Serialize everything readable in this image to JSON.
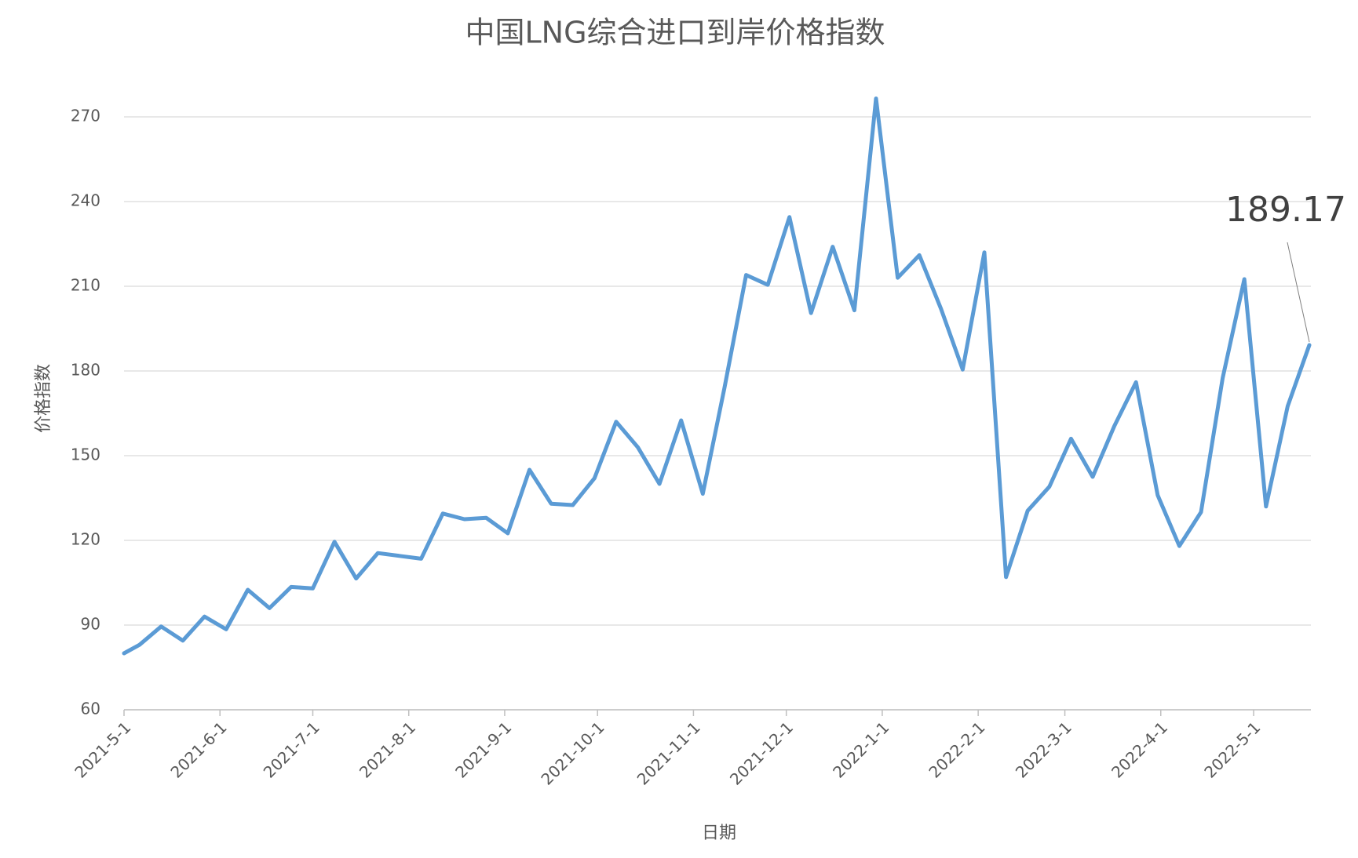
{
  "chart_data": {
    "type": "line",
    "title": "中国LNG综合进口到岸价格指数",
    "x_label": "日期",
    "y_label": "价格指数",
    "x": [
      "2021-5-1",
      "2021-5-6",
      "2021-5-13",
      "2021-5-20",
      "2021-5-27",
      "2021-6-3",
      "2021-6-10",
      "2021-6-17",
      "2021-6-24",
      "2021-7-1",
      "2021-7-8",
      "2021-7-15",
      "2021-7-22",
      "2021-7-29",
      "2021-8-5",
      "2021-8-12",
      "2021-8-19",
      "2021-8-26",
      "2021-9-2",
      "2021-9-9",
      "2021-9-16",
      "2021-9-23",
      "2021-9-30",
      "2021-10-7",
      "2021-10-14",
      "2021-10-21",
      "2021-10-28",
      "2021-11-4",
      "2021-11-11",
      "2021-11-18",
      "2021-11-25",
      "2021-12-2",
      "2021-12-9",
      "2021-12-16",
      "2021-12-23",
      "2021-12-30",
      "2022-1-6",
      "2022-1-13",
      "2022-1-20",
      "2022-1-27",
      "2022-2-3",
      "2022-2-10",
      "2022-2-17",
      "2022-2-24",
      "2022-3-3",
      "2022-3-10",
      "2022-3-17",
      "2022-3-24",
      "2022-3-31",
      "2022-4-7",
      "2022-4-14",
      "2022-4-21",
      "2022-4-28",
      "2022-5-5",
      "2022-5-12",
      "2022-5-19"
    ],
    "series": [
      {
        "name": "价格指数",
        "color": "#5b9bd5",
        "values": [
          80,
          83,
          89.5,
          84.5,
          93,
          88.5,
          102.5,
          96,
          103.5,
          103,
          119.5,
          106.5,
          115.5,
          114.5,
          113.5,
          129.5,
          127.5,
          128,
          122.5,
          145,
          133,
          132.5,
          142,
          162,
          153,
          140,
          162.5,
          136.5,
          174,
          214,
          210.5,
          234.5,
          200.5,
          224,
          201.5,
          276.5,
          213,
          221,
          202,
          180.5,
          222,
          107,
          130.5,
          139,
          156,
          142.5,
          160.5,
          176,
          136,
          118,
          130,
          177.5,
          212.5,
          132,
          167.5,
          189.17
        ]
      }
    ],
    "xlim": [
      "2021-5-1",
      "2022-5-19"
    ],
    "xticks": [
      "2021-5-1",
      "2021-6-1",
      "2021-7-1",
      "2021-8-1",
      "2021-9-1",
      "2021-10-1",
      "2021-11-1",
      "2021-12-1",
      "2022-1-1",
      "2022-2-1",
      "2022-3-1",
      "2022-4-1",
      "2022-5-1"
    ],
    "ylim": [
      60,
      270
    ],
    "yticks": [
      60,
      90,
      120,
      150,
      180,
      210,
      240,
      270
    ],
    "grid": true
  }
}
